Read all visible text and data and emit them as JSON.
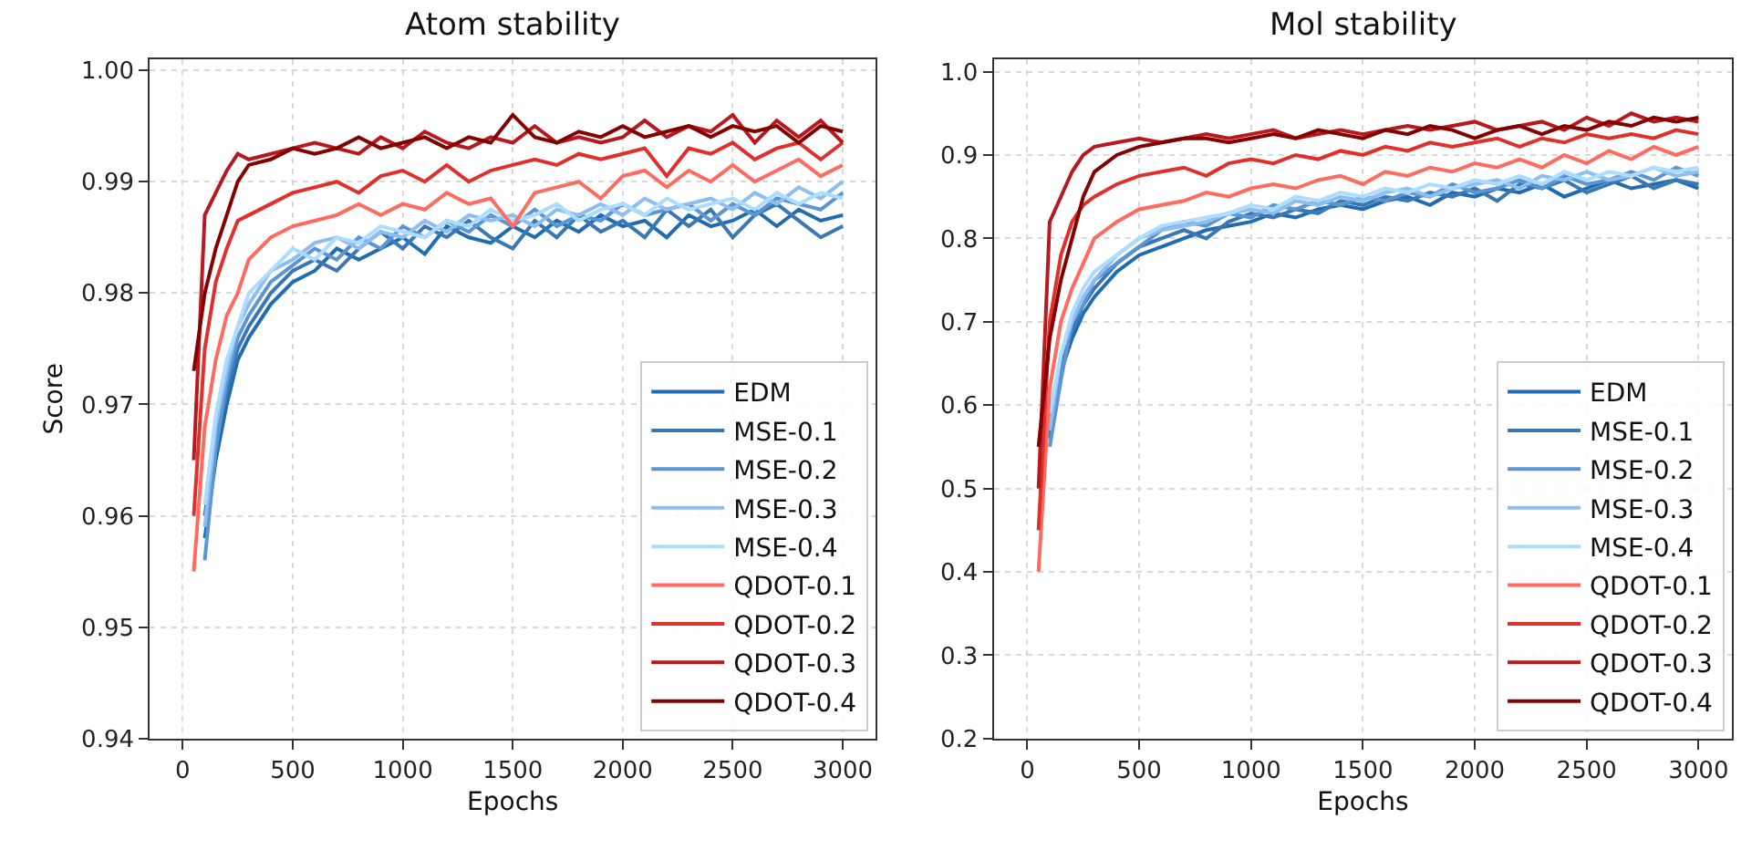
{
  "chart_data": [
    {
      "type": "line",
      "title": "Atom stability",
      "xlabel": "Epochs",
      "ylabel": "Score",
      "grid": true,
      "legend": "bottom right",
      "line_style": "solid",
      "x": [
        50,
        100,
        150,
        200,
        250,
        300,
        400,
        500,
        600,
        700,
        800,
        900,
        1000,
        1100,
        1200,
        1300,
        1400,
        1500,
        1600,
        1700,
        1800,
        1900,
        2000,
        2100,
        2200,
        2300,
        2400,
        2500,
        2600,
        2700,
        2800,
        2900,
        3000
      ],
      "xlim": [
        -150,
        3150
      ],
      "xticks": [
        0,
        500,
        1000,
        1500,
        2000,
        2500,
        3000
      ],
      "ylim": [
        0.94,
        1.001
      ],
      "yticks": [
        0.94,
        0.95,
        0.96,
        0.97,
        0.98,
        0.99,
        {
          "value": 1.0,
          "label": "1.00"
        }
      ],
      "series": [
        {
          "name": "EDM",
          "color": "#1f6db0",
          "values": [
            null,
            0.958,
            0.965,
            0.97,
            0.974,
            0.976,
            0.979,
            0.981,
            0.982,
            0.984,
            0.983,
            0.984,
            0.985,
            0.9835,
            0.986,
            0.985,
            0.9845,
            0.986,
            0.985,
            0.9865,
            0.9855,
            0.987,
            0.986,
            0.9865,
            0.985,
            0.987,
            0.986,
            0.9865,
            0.9875,
            0.986,
            0.9875,
            0.9865,
            0.987
          ]
        },
        {
          "name": "MSE-0.1",
          "color": "#3a78b5",
          "values": [
            null,
            0.96,
            0.967,
            0.971,
            0.975,
            0.977,
            0.98,
            0.982,
            0.983,
            0.982,
            0.984,
            0.9855,
            0.984,
            0.986,
            0.985,
            0.9865,
            0.985,
            0.984,
            0.9865,
            0.985,
            0.987,
            0.9855,
            0.9865,
            0.985,
            0.9875,
            0.986,
            0.9875,
            0.985,
            0.987,
            0.988,
            0.9865,
            0.985,
            0.986
          ]
        },
        {
          "name": "MSE-0.2",
          "color": "#5b95d2",
          "values": [
            null,
            0.956,
            0.966,
            0.972,
            0.976,
            0.978,
            0.981,
            0.9825,
            0.984,
            0.983,
            0.985,
            0.984,
            0.986,
            0.985,
            0.9865,
            0.9855,
            0.987,
            0.986,
            0.9875,
            0.986,
            0.987,
            0.9865,
            0.988,
            0.987,
            0.9875,
            0.988,
            0.9865,
            0.988,
            0.987,
            0.9885,
            0.988,
            0.9875,
            0.989
          ]
        },
        {
          "name": "MSE-0.3",
          "color": "#8ebdf0",
          "values": [
            null,
            0.959,
            0.968,
            0.973,
            0.977,
            0.979,
            0.982,
            0.983,
            0.9845,
            0.985,
            0.984,
            0.9855,
            0.985,
            0.9865,
            0.9855,
            0.987,
            0.9865,
            0.987,
            0.986,
            0.9875,
            0.987,
            0.988,
            0.987,
            0.9885,
            0.9875,
            0.988,
            0.9885,
            0.9875,
            0.989,
            0.988,
            0.9895,
            0.9885,
            0.99
          ]
        },
        {
          "name": "MSE-0.4",
          "color": "#acdcff",
          "values": [
            null,
            0.961,
            0.969,
            0.974,
            0.977,
            0.98,
            0.982,
            0.984,
            0.983,
            0.985,
            0.9845,
            0.986,
            0.9855,
            0.985,
            0.9865,
            0.986,
            0.9875,
            0.9865,
            0.987,
            0.988,
            0.9865,
            0.9875,
            0.988,
            0.987,
            0.9885,
            0.9875,
            0.988,
            0.9885,
            0.9875,
            0.989,
            0.988,
            0.989,
            0.9885
          ]
        },
        {
          "name": "QDOT-0.1",
          "color": "#ff6b5e",
          "values": [
            0.955,
            0.968,
            0.974,
            0.978,
            0.98,
            0.983,
            0.985,
            0.986,
            0.9865,
            0.987,
            0.988,
            0.987,
            0.988,
            0.9875,
            0.989,
            0.988,
            0.9885,
            0.986,
            0.989,
            0.9895,
            0.99,
            0.9885,
            0.9905,
            0.991,
            0.9895,
            0.991,
            0.99,
            0.9915,
            0.99,
            0.991,
            0.992,
            0.9905,
            0.9915
          ]
        },
        {
          "name": "QDOT-0.2",
          "color": "#e0302c",
          "values": [
            0.96,
            0.975,
            0.981,
            0.984,
            0.9865,
            0.987,
            0.988,
            0.989,
            0.9895,
            0.99,
            0.989,
            0.9905,
            0.991,
            0.99,
            0.9915,
            0.99,
            0.991,
            0.9915,
            0.992,
            0.9915,
            0.9925,
            0.992,
            0.9925,
            0.993,
            0.9905,
            0.993,
            0.9925,
            0.9935,
            0.992,
            0.993,
            0.9935,
            0.992,
            0.9935
          ]
        },
        {
          "name": "QDOT-0.3",
          "color": "#b8191e",
          "values": [
            0.965,
            0.987,
            0.989,
            0.991,
            0.9925,
            0.992,
            0.9925,
            0.993,
            0.9935,
            0.993,
            0.9925,
            0.994,
            0.993,
            0.9945,
            0.9935,
            0.993,
            0.994,
            0.9935,
            0.995,
            0.9935,
            0.994,
            0.9935,
            0.994,
            0.9955,
            0.994,
            0.995,
            0.9945,
            0.996,
            0.9935,
            0.9955,
            0.994,
            0.9955,
            0.9935
          ]
        },
        {
          "name": "QDOT-0.4",
          "color": "#850000",
          "values": [
            0.973,
            0.98,
            0.984,
            0.987,
            0.99,
            0.9915,
            0.992,
            0.993,
            0.9925,
            0.993,
            0.994,
            0.993,
            0.9935,
            0.994,
            0.993,
            0.994,
            0.9935,
            0.996,
            0.994,
            0.9935,
            0.9945,
            0.994,
            0.995,
            0.994,
            0.9945,
            0.995,
            0.994,
            0.995,
            0.9945,
            0.995,
            0.9935,
            0.995,
            0.9945
          ]
        }
      ]
    },
    {
      "type": "line",
      "title": "Mol stability",
      "xlabel": "Epochs",
      "grid": true,
      "legend": "bottom right",
      "line_style": "solid",
      "x": [
        50,
        100,
        150,
        200,
        250,
        300,
        400,
        500,
        600,
        700,
        800,
        900,
        1000,
        1100,
        1200,
        1300,
        1400,
        1500,
        1600,
        1700,
        1800,
        1900,
        2000,
        2100,
        2200,
        2300,
        2400,
        2500,
        2600,
        2700,
        2800,
        2900,
        3000
      ],
      "xlim": [
        -150,
        3150
      ],
      "xticks": [
        0,
        500,
        1000,
        1500,
        2000,
        2500,
        3000
      ],
      "ylim": [
        0.2,
        1.015
      ],
      "yticks": [
        0.2,
        0.3,
        0.4,
        0.5,
        0.6,
        0.7,
        0.8,
        0.9,
        {
          "value": 1.0,
          "label": "1.0"
        }
      ],
      "series": [
        {
          "name": "EDM",
          "color": "#1f6db0",
          "values": [
            null,
            0.58,
            0.64,
            0.68,
            0.71,
            0.73,
            0.76,
            0.78,
            0.79,
            0.8,
            0.81,
            0.815,
            0.82,
            0.83,
            0.825,
            0.835,
            0.84,
            0.835,
            0.845,
            0.85,
            0.84,
            0.855,
            0.85,
            0.86,
            0.855,
            0.865,
            0.85,
            0.86,
            0.87,
            0.86,
            0.865,
            0.87,
            0.86
          ]
        },
        {
          "name": "MSE-0.1",
          "color": "#3a78b5",
          "values": [
            null,
            0.56,
            0.65,
            0.69,
            0.72,
            0.74,
            0.77,
            0.79,
            0.8,
            0.81,
            0.8,
            0.82,
            0.83,
            0.825,
            0.835,
            0.83,
            0.845,
            0.84,
            0.85,
            0.845,
            0.855,
            0.85,
            0.86,
            0.845,
            0.865,
            0.86,
            0.87,
            0.855,
            0.865,
            0.875,
            0.86,
            0.87,
            0.865
          ]
        },
        {
          "name": "MSE-0.2",
          "color": "#5b95d2",
          "values": [
            null,
            0.55,
            0.63,
            0.7,
            0.72,
            0.75,
            0.77,
            0.79,
            0.81,
            0.82,
            0.815,
            0.83,
            0.825,
            0.84,
            0.835,
            0.845,
            0.84,
            0.85,
            0.845,
            0.855,
            0.85,
            0.865,
            0.855,
            0.86,
            0.87,
            0.86,
            0.875,
            0.865,
            0.87,
            0.88,
            0.87,
            0.885,
            0.875
          ]
        },
        {
          "name": "MSE-0.3",
          "color": "#8ebdf0",
          "values": [
            null,
            0.57,
            0.66,
            0.7,
            0.73,
            0.75,
            0.78,
            0.8,
            0.81,
            0.815,
            0.82,
            0.83,
            0.835,
            0.83,
            0.845,
            0.84,
            0.85,
            0.845,
            0.855,
            0.86,
            0.85,
            0.86,
            0.865,
            0.87,
            0.86,
            0.875,
            0.87,
            0.88,
            0.87,
            0.875,
            0.885,
            0.875,
            0.88
          ]
        },
        {
          "name": "MSE-0.4",
          "color": "#acdcff",
          "values": [
            null,
            0.59,
            0.66,
            0.71,
            0.74,
            0.76,
            0.78,
            0.8,
            0.815,
            0.82,
            0.825,
            0.83,
            0.84,
            0.835,
            0.85,
            0.845,
            0.855,
            0.85,
            0.86,
            0.855,
            0.865,
            0.86,
            0.87,
            0.865,
            0.875,
            0.865,
            0.88,
            0.87,
            0.88,
            0.875,
            0.885,
            0.88,
            0.885
          ]
        },
        {
          "name": "QDOT-0.1",
          "color": "#ff6b5e",
          "values": [
            0.4,
            0.62,
            0.7,
            0.74,
            0.77,
            0.8,
            0.82,
            0.835,
            0.84,
            0.845,
            0.855,
            0.85,
            0.86,
            0.865,
            0.86,
            0.87,
            0.875,
            0.865,
            0.88,
            0.875,
            0.885,
            0.88,
            0.89,
            0.885,
            0.895,
            0.885,
            0.9,
            0.89,
            0.905,
            0.895,
            0.91,
            0.9,
            0.91
          ]
        },
        {
          "name": "QDOT-0.2",
          "color": "#e0302c",
          "values": [
            0.45,
            0.7,
            0.78,
            0.82,
            0.84,
            0.85,
            0.865,
            0.875,
            0.88,
            0.885,
            0.875,
            0.89,
            0.895,
            0.89,
            0.9,
            0.895,
            0.905,
            0.9,
            0.91,
            0.905,
            0.915,
            0.91,
            0.915,
            0.92,
            0.91,
            0.92,
            0.915,
            0.925,
            0.92,
            0.925,
            0.92,
            0.93,
            0.925
          ]
        },
        {
          "name": "QDOT-0.3",
          "color": "#b8191e",
          "values": [
            0.5,
            0.82,
            0.85,
            0.88,
            0.9,
            0.91,
            0.915,
            0.92,
            0.915,
            0.92,
            0.925,
            0.92,
            0.925,
            0.93,
            0.92,
            0.925,
            0.93,
            0.925,
            0.93,
            0.935,
            0.93,
            0.935,
            0.94,
            0.93,
            0.935,
            0.94,
            0.93,
            0.945,
            0.935,
            0.95,
            0.94,
            0.945,
            0.94
          ]
        },
        {
          "name": "QDOT-0.4",
          "color": "#850000",
          "values": [
            0.55,
            0.68,
            0.75,
            0.8,
            0.85,
            0.88,
            0.9,
            0.91,
            0.915,
            0.92,
            0.92,
            0.915,
            0.92,
            0.925,
            0.92,
            0.93,
            0.925,
            0.92,
            0.93,
            0.925,
            0.935,
            0.93,
            0.92,
            0.93,
            0.935,
            0.925,
            0.935,
            0.93,
            0.94,
            0.935,
            0.945,
            0.94,
            0.945
          ]
        }
      ]
    }
  ]
}
